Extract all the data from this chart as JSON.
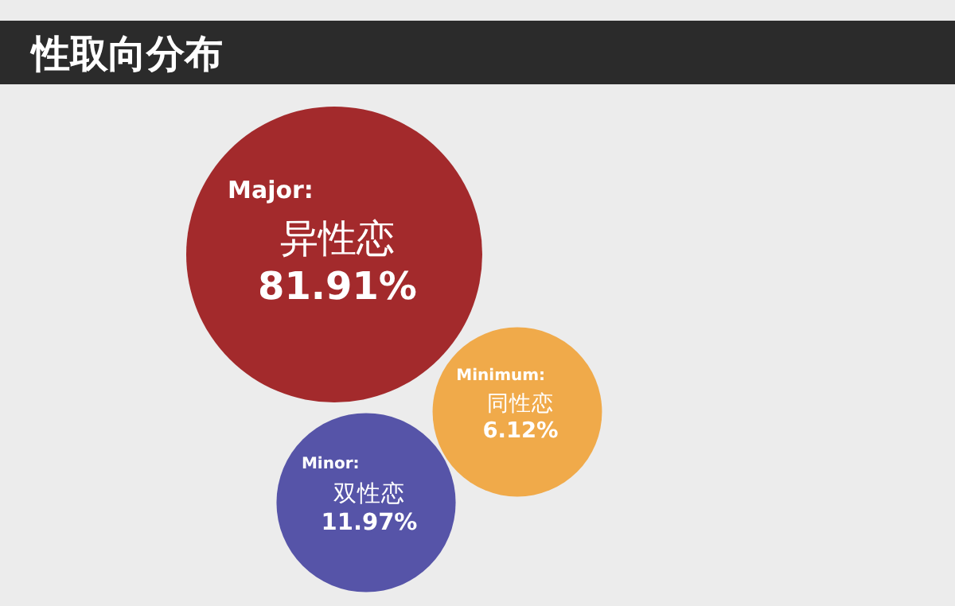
{
  "chart_data": {
    "type": "other",
    "title": "性取向分布",
    "categories": [
      "异性恋",
      "同性恋",
      "双性恋"
    ],
    "values": [
      81.91,
      6.12,
      11.97
    ],
    "value_labels": [
      "81.91%",
      "6.12%",
      "11.97%"
    ],
    "annotations": [
      "Major:",
      "Minimum:",
      "Minor:"
    ],
    "colors": [
      "#a32a2c",
      "#f0aa4a",
      "#5654a8"
    ]
  }
}
